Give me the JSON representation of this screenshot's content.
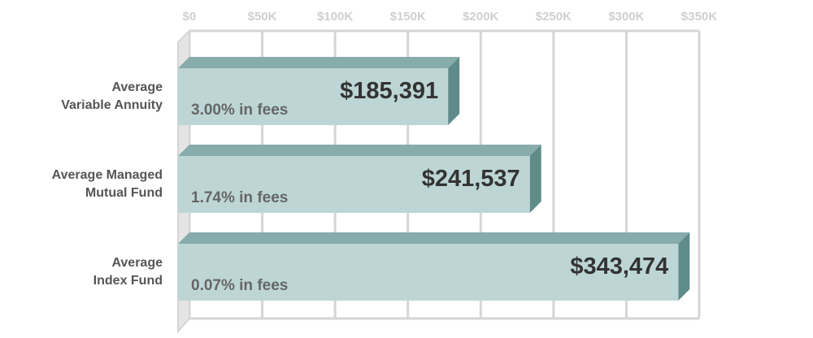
{
  "chart_data": {
    "type": "bar",
    "orientation": "horizontal",
    "categories": [
      [
        "Average",
        "Variable Annuity"
      ],
      [
        "Average Managed",
        "Mutual Fund"
      ],
      [
        "Average",
        "Index Fund"
      ]
    ],
    "values": [
      185391,
      241537,
      343474
    ],
    "value_labels": [
      "$185,391",
      "$241,537",
      "$343,474"
    ],
    "fee_labels": [
      "3.00% in fees",
      "1.74% in fees",
      "0.07% in fees"
    ],
    "x_ticks": [
      "$0",
      "$50K",
      "$100K",
      "$150K",
      "$200K",
      "$250K",
      "$300K",
      "$350K"
    ],
    "xlim": [
      0,
      350000
    ],
    "axis_position": "top",
    "grid": true,
    "colors": {
      "bar_face": "#bdd5d5",
      "bar_top": "#88abab",
      "bar_side": "#5f8b89",
      "grid": "#d5d5d5",
      "tick_text": "#cfcfcf",
      "value_text": "#333333",
      "fee_text": "#666666",
      "category_text": "#555555"
    }
  }
}
